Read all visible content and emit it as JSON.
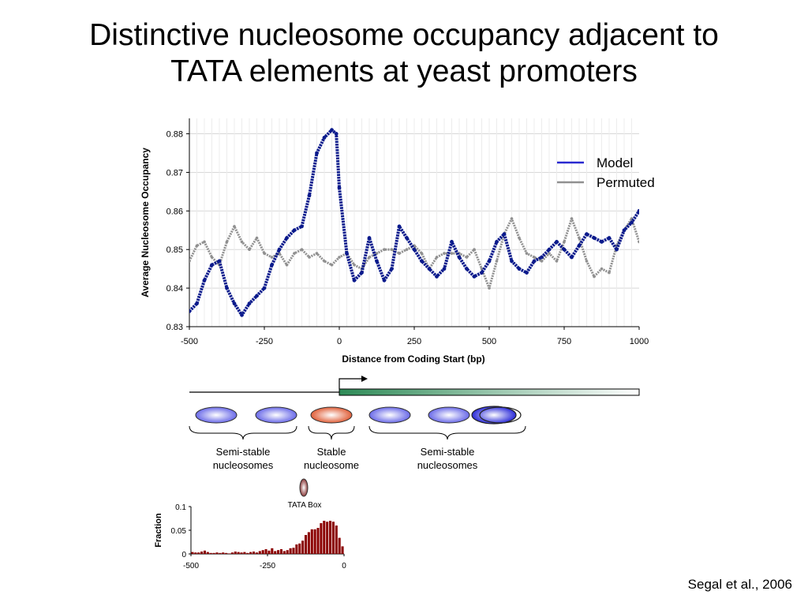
{
  "slide": {
    "title_line1": "Distinctive nucleosome occupancy adjacent to",
    "title_line2": "TATA elements at yeast promoters",
    "citation": "Segal et al., 2006"
  },
  "chart_data": [
    {
      "type": "line",
      "title": "",
      "xlabel": "Distance from Coding Start (bp)",
      "ylabel": "Average Nucleosome Occupancy",
      "xlim": [
        -500,
        1000
      ],
      "ylim": [
        0.83,
        0.882
      ],
      "x_ticks": [
        -500,
        -250,
        0,
        250,
        500,
        750,
        1000
      ],
      "y_ticks": [
        0.83,
        0.84,
        0.85,
        0.86,
        0.87,
        0.88
      ],
      "grid": "horizontal",
      "legend": "top-right",
      "series": [
        {
          "name": "Model",
          "color": "#0a1a8c",
          "x": [
            -500,
            -475,
            -450,
            -425,
            -400,
            -375,
            -350,
            -325,
            -300,
            -275,
            -250,
            -225,
            -200,
            -175,
            -150,
            -125,
            -100,
            -75,
            -50,
            -25,
            -10,
            0,
            25,
            50,
            75,
            100,
            125,
            150,
            175,
            200,
            225,
            250,
            275,
            300,
            325,
            350,
            375,
            400,
            425,
            450,
            475,
            500,
            525,
            550,
            575,
            600,
            625,
            650,
            675,
            700,
            725,
            750,
            775,
            800,
            825,
            850,
            875,
            900,
            925,
            950,
            975,
            1000
          ],
          "values": [
            0.834,
            0.836,
            0.842,
            0.846,
            0.847,
            0.84,
            0.836,
            0.833,
            0.836,
            0.838,
            0.84,
            0.846,
            0.85,
            0.853,
            0.855,
            0.856,
            0.864,
            0.875,
            0.879,
            0.881,
            0.88,
            0.866,
            0.849,
            0.842,
            0.844,
            0.853,
            0.847,
            0.842,
            0.845,
            0.856,
            0.853,
            0.85,
            0.847,
            0.845,
            0.843,
            0.845,
            0.852,
            0.848,
            0.845,
            0.843,
            0.844,
            0.847,
            0.852,
            0.854,
            0.847,
            0.845,
            0.844,
            0.847,
            0.848,
            0.85,
            0.852,
            0.85,
            0.848,
            0.851,
            0.854,
            0.853,
            0.852,
            0.853,
            0.85,
            0.855,
            0.857,
            0.86
          ]
        },
        {
          "name": "Permuted",
          "color": "#909090",
          "x": [
            -500,
            -475,
            -450,
            -425,
            -400,
            -375,
            -350,
            -325,
            -300,
            -275,
            -250,
            -225,
            -200,
            -175,
            -150,
            -125,
            -100,
            -75,
            -50,
            -25,
            0,
            25,
            50,
            75,
            100,
            125,
            150,
            175,
            200,
            225,
            250,
            275,
            300,
            325,
            350,
            375,
            400,
            425,
            450,
            475,
            500,
            525,
            550,
            575,
            600,
            625,
            650,
            675,
            700,
            725,
            750,
            775,
            800,
            825,
            850,
            875,
            900,
            925,
            950,
            975,
            1000
          ],
          "values": [
            0.847,
            0.851,
            0.852,
            0.848,
            0.846,
            0.852,
            0.856,
            0.852,
            0.85,
            0.853,
            0.849,
            0.848,
            0.849,
            0.846,
            0.849,
            0.85,
            0.848,
            0.849,
            0.847,
            0.846,
            0.848,
            0.849,
            0.846,
            0.845,
            0.848,
            0.849,
            0.85,
            0.85,
            0.849,
            0.85,
            0.851,
            0.849,
            0.845,
            0.848,
            0.849,
            0.849,
            0.849,
            0.848,
            0.85,
            0.845,
            0.84,
            0.847,
            0.854,
            0.858,
            0.853,
            0.849,
            0.848,
            0.847,
            0.849,
            0.847,
            0.852,
            0.858,
            0.853,
            0.847,
            0.843,
            0.845,
            0.844,
            0.851,
            0.855,
            0.858,
            0.852
          ]
        }
      ]
    },
    {
      "type": "bar",
      "title": "",
      "xlabel": "",
      "ylabel": "Fraction",
      "xlim": [
        -500,
        0
      ],
      "ylim": [
        0,
        0.1
      ],
      "x_ticks": [
        -500,
        -250,
        0
      ],
      "y_ticks": [
        0,
        0.05,
        0.1
      ],
      "color": "#8b0000",
      "bin_starts": [
        -500,
        -490,
        -480,
        -470,
        -460,
        -450,
        -440,
        -430,
        -420,
        -410,
        -400,
        -390,
        -380,
        -370,
        -360,
        -350,
        -340,
        -330,
        -320,
        -310,
        -300,
        -290,
        -280,
        -270,
        -260,
        -250,
        -240,
        -230,
        -220,
        -210,
        -200,
        -190,
        -180,
        -170,
        -160,
        -150,
        -140,
        -130,
        -120,
        -110,
        -100,
        -90,
        -80,
        -70,
        -60,
        -50,
        -40,
        -30,
        -20,
        -10
      ],
      "values": [
        0.004,
        0.003,
        0.003,
        0.005,
        0.007,
        0.004,
        0.002,
        0.002,
        0.003,
        0.002,
        0.003,
        0.002,
        0.001,
        0.003,
        0.005,
        0.004,
        0.003,
        0.004,
        0.002,
        0.004,
        0.005,
        0.003,
        0.006,
        0.008,
        0.01,
        0.007,
        0.012,
        0.006,
        0.008,
        0.01,
        0.006,
        0.008,
        0.012,
        0.013,
        0.02,
        0.022,
        0.028,
        0.04,
        0.046,
        0.052,
        0.052,
        0.055,
        0.065,
        0.07,
        0.068,
        0.07,
        0.068,
        0.06,
        0.034,
        0.016
      ]
    }
  ],
  "diagram": {
    "labels": {
      "semi_left_line1": "Semi-stable",
      "semi_left_line2": "nucleosomes",
      "stable_line1": "Stable",
      "stable_line2": "nucleosome",
      "semi_right_line1": "Semi-stable",
      "semi_right_line2": "nucleosomes",
      "tata_box": "TATA Box"
    },
    "colors": {
      "semi_stable": "#7f7fe8",
      "stable": "#e0734a",
      "gene": "#2e8b57",
      "tata": "#8b3a3a"
    }
  }
}
